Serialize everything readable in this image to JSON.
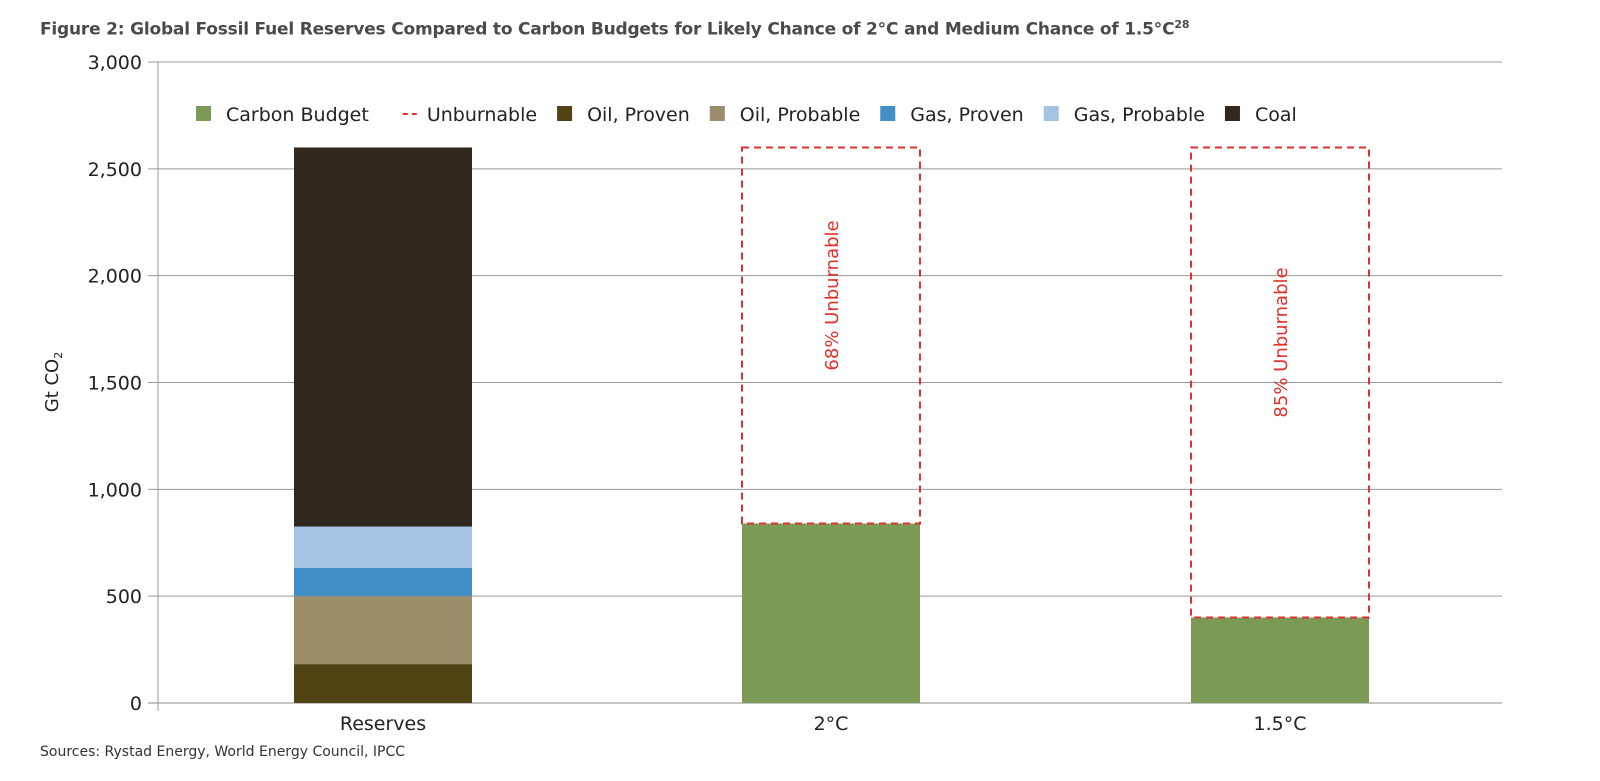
{
  "title": "Figure 2: Global Fossil Fuel Reserves Compared to Carbon Budgets for Likely Chance of 2°C and Medium Chance of 1.5°C",
  "title_superscript": "28",
  "source": "Sources: Rystad Energy, World Energy Council, IPCC",
  "chart_data": {
    "type": "bar",
    "stacked": true,
    "categories": [
      "Reserves",
      "2°C",
      "1.5°C"
    ],
    "ylabel": "Gt CO",
    "ylabel_subscript": "2",
    "ylim": [
      0,
      3000
    ],
    "yticks": [
      0,
      500,
      1000,
      1500,
      2000,
      2500,
      3000
    ],
    "ytick_labels": [
      "0",
      "500",
      "1,000",
      "1,500",
      "2,000",
      "2,500",
      "3,000"
    ],
    "grid": true,
    "legend_position": "top",
    "series": [
      {
        "name": "Carbon Budget",
        "color": "#7a9a56",
        "values": [
          0,
          840,
          400
        ]
      },
      {
        "name": "Unburnable",
        "color": "#e0312a",
        "style": "dashed-outline",
        "values": [
          0,
          1760,
          2200
        ]
      },
      {
        "name": "Oil, Proven",
        "color": "#514414",
        "values": [
          182,
          0,
          0
        ]
      },
      {
        "name": "Oil, Probable",
        "color": "#9c8d6a",
        "values": [
          318,
          0,
          0
        ]
      },
      {
        "name": "Gas, Proven",
        "color": "#428fc8",
        "values": [
          132,
          0,
          0
        ]
      },
      {
        "name": "Gas, Probable",
        "color": "#a4c3e2",
        "values": [
          194,
          0,
          0
        ]
      },
      {
        "name": "Coal",
        "color": "#30281f",
        "values": [
          1774,
          0,
          0
        ]
      }
    ],
    "annotations": [
      {
        "category": "2°C",
        "text": "68% Unburnable"
      },
      {
        "category": "1.5°C",
        "text": "85% Unburnable"
      }
    ]
  }
}
